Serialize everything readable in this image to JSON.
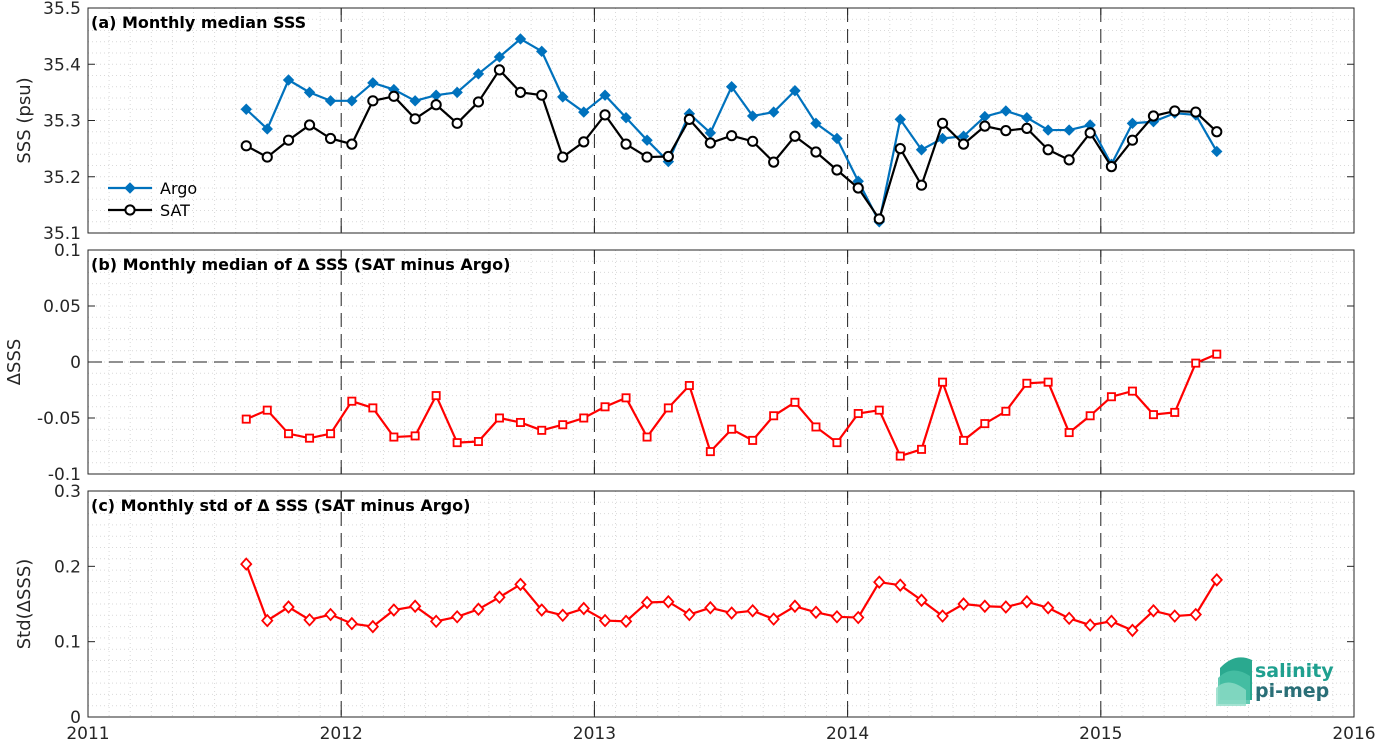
{
  "chart_data": [
    {
      "type": "line",
      "title": "(a) Monthly median SSS",
      "ylabel": "SSS (psu)",
      "ylim": [
        35.1,
        35.5
      ],
      "yticks": [
        "35.1",
        "35.2",
        "35.3",
        "35.4",
        "35.5"
      ],
      "xlim": [
        2011,
        2016
      ],
      "xticks": [
        "2011",
        "2012",
        "2013",
        "2014",
        "2015",
        "2016"
      ],
      "legend": {
        "placement": "bottom-left"
      },
      "x": [
        2011.625,
        2011.708,
        2011.792,
        2011.875,
        2011.958,
        2012.042,
        2012.125,
        2012.208,
        2012.292,
        2012.375,
        2012.458,
        2012.542,
        2012.625,
        2012.708,
        2012.792,
        2012.875,
        2012.958,
        2013.042,
        2013.125,
        2013.208,
        2013.292,
        2013.375,
        2013.458,
        2013.542,
        2013.625,
        2013.708,
        2013.792,
        2013.875,
        2013.958,
        2014.042,
        2014.125,
        2014.208,
        2014.292,
        2014.375,
        2014.458,
        2014.542,
        2014.625,
        2014.708,
        2014.792,
        2014.875,
        2014.958,
        2015.042,
        2015.125,
        2015.208,
        2015.292,
        2015.375,
        2015.458
      ],
      "series": [
        {
          "name": "Argo",
          "color": "#0072bd",
          "marker": "diamond-filled",
          "values": [
            35.32,
            35.285,
            35.372,
            35.35,
            35.335,
            35.335,
            35.367,
            35.355,
            35.335,
            35.345,
            35.35,
            35.383,
            35.413,
            35.445,
            35.423,
            35.342,
            35.315,
            35.345,
            35.305,
            35.265,
            35.227,
            35.312,
            35.278,
            35.36,
            35.308,
            35.315,
            35.353,
            35.295,
            35.268,
            35.192,
            35.12,
            35.302,
            35.248,
            35.268,
            35.272,
            35.307,
            35.317,
            35.305,
            35.283,
            35.283,
            35.292,
            35.222,
            35.295,
            35.298,
            35.313,
            35.31,
            35.245
          ]
        },
        {
          "name": "SAT",
          "color": "#000000",
          "marker": "circle-open",
          "values": [
            35.255,
            35.235,
            35.265,
            35.292,
            35.268,
            35.258,
            35.335,
            35.343,
            35.303,
            35.328,
            35.295,
            35.333,
            35.39,
            35.35,
            35.345,
            35.235,
            35.262,
            35.31,
            35.258,
            35.235,
            35.236,
            35.302,
            35.26,
            35.273,
            35.263,
            35.226,
            35.272,
            35.244,
            35.212,
            35.18,
            35.125,
            35.25,
            35.185,
            35.295,
            35.258,
            35.29,
            35.282,
            35.286,
            35.248,
            35.23,
            35.278,
            35.218,
            35.265,
            35.308,
            35.317,
            35.315,
            35.28
          ]
        }
      ]
    },
    {
      "type": "line",
      "title": "(b) Monthly median of Δ SSS (SAT minus Argo)",
      "ylabel": "ΔSSS",
      "ylim": [
        -0.1,
        0.1
      ],
      "yticks": [
        "-0.1",
        "-0.05",
        "0",
        "0.05",
        "0.1"
      ],
      "xlim": [
        2011,
        2016
      ],
      "xticks": [
        "2011",
        "2012",
        "2013",
        "2014",
        "2015",
        "2016"
      ],
      "x": [
        2011.625,
        2011.708,
        2011.792,
        2011.875,
        2011.958,
        2012.042,
        2012.125,
        2012.208,
        2012.292,
        2012.375,
        2012.458,
        2012.542,
        2012.625,
        2012.708,
        2012.792,
        2012.875,
        2012.958,
        2013.042,
        2013.125,
        2013.208,
        2013.292,
        2013.375,
        2013.458,
        2013.542,
        2013.625,
        2013.708,
        2013.792,
        2013.875,
        2013.958,
        2014.042,
        2014.125,
        2014.208,
        2014.292,
        2014.375,
        2014.458,
        2014.542,
        2014.625,
        2014.708,
        2014.792,
        2014.875,
        2014.958,
        2015.042,
        2015.125,
        2015.208,
        2015.292,
        2015.375,
        2015.458
      ],
      "series": [
        {
          "color": "#ff0000",
          "marker": "square-open",
          "values": [
            -0.051,
            -0.043,
            -0.064,
            -0.068,
            -0.064,
            -0.035,
            -0.041,
            -0.067,
            -0.066,
            -0.03,
            -0.072,
            -0.071,
            -0.05,
            -0.054,
            -0.061,
            -0.056,
            -0.05,
            -0.04,
            -0.032,
            -0.067,
            -0.041,
            -0.021,
            -0.08,
            -0.06,
            -0.07,
            -0.048,
            -0.036,
            -0.058,
            -0.072,
            -0.046,
            -0.043,
            -0.084,
            -0.078,
            -0.018,
            -0.07,
            -0.055,
            -0.044,
            -0.019,
            -0.018,
            -0.063,
            -0.048,
            -0.031,
            -0.026,
            -0.047,
            -0.045,
            -0.001,
            0.007
          ]
        }
      ]
    },
    {
      "type": "line",
      "title": "(c) Monthly std of Δ SSS (SAT minus Argo)",
      "ylabel": "Std(ΔSSS)",
      "ylim": [
        0,
        0.3
      ],
      "yticks": [
        "0",
        "0.1",
        "0.2",
        "0.3"
      ],
      "xlim": [
        2011,
        2016
      ],
      "xticks": [
        "2011",
        "2012",
        "2013",
        "2014",
        "2015",
        "2016"
      ],
      "x": [
        2011.625,
        2011.708,
        2011.792,
        2011.875,
        2011.958,
        2012.042,
        2012.125,
        2012.208,
        2012.292,
        2012.375,
        2012.458,
        2012.542,
        2012.625,
        2012.708,
        2012.792,
        2012.875,
        2012.958,
        2013.042,
        2013.125,
        2013.208,
        2013.292,
        2013.375,
        2013.458,
        2013.542,
        2013.625,
        2013.708,
        2013.792,
        2013.875,
        2013.958,
        2014.042,
        2014.125,
        2014.208,
        2014.292,
        2014.375,
        2014.458,
        2014.542,
        2014.625,
        2014.708,
        2014.792,
        2014.875,
        2014.958,
        2015.042,
        2015.125,
        2015.208,
        2015.292,
        2015.375,
        2015.458
      ],
      "series": [
        {
          "color": "#ff0000",
          "marker": "diamond-open",
          "values": [
            0.203,
            0.128,
            0.146,
            0.129,
            0.136,
            0.124,
            0.12,
            0.142,
            0.147,
            0.127,
            0.133,
            0.143,
            0.159,
            0.176,
            0.142,
            0.135,
            0.144,
            0.128,
            0.127,
            0.152,
            0.153,
            0.136,
            0.145,
            0.138,
            0.141,
            0.13,
            0.147,
            0.139,
            0.133,
            0.132,
            0.179,
            0.175,
            0.155,
            0.134,
            0.15,
            0.147,
            0.146,
            0.153,
            0.145,
            0.131,
            0.122,
            0.127,
            0.115,
            0.141,
            0.134,
            0.136,
            0.182
          ]
        }
      ]
    }
  ],
  "logo": {
    "line1": "salinity",
    "line2": "pi-mep",
    "colors": [
      "#1fa08f",
      "#2a6f77"
    ]
  }
}
